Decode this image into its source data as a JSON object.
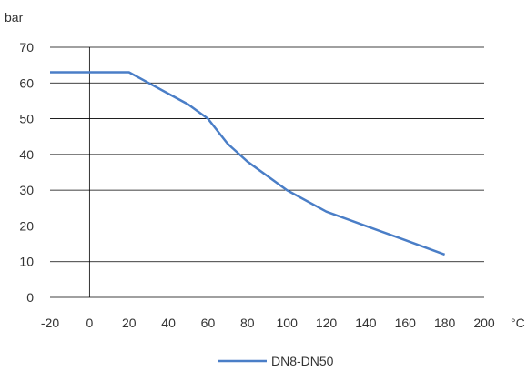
{
  "chart_data": {
    "type": "line",
    "ylabel": "bar",
    "xlabel": "°C",
    "xlim": [
      -20,
      200
    ],
    "ylim": [
      0,
      70
    ],
    "x_ticks": [
      -20,
      0,
      20,
      40,
      60,
      80,
      100,
      120,
      140,
      160,
      180,
      200
    ],
    "y_ticks": [
      0,
      10,
      20,
      30,
      40,
      50,
      60,
      70
    ],
    "grid": "horizontal",
    "legend": "bottom-center",
    "colors": {
      "series": "#4a7ec7",
      "grid": "#000000",
      "text": "#333333"
    },
    "series": [
      {
        "name": "DN8-DN50",
        "x": [
          -20,
          0,
          20,
          30,
          40,
          50,
          60,
          70,
          80,
          100,
          120,
          140,
          160,
          180
        ],
        "y": [
          63,
          63,
          63,
          60,
          57,
          54,
          50,
          43,
          38,
          30,
          24,
          20,
          16,
          12
        ]
      }
    ]
  }
}
